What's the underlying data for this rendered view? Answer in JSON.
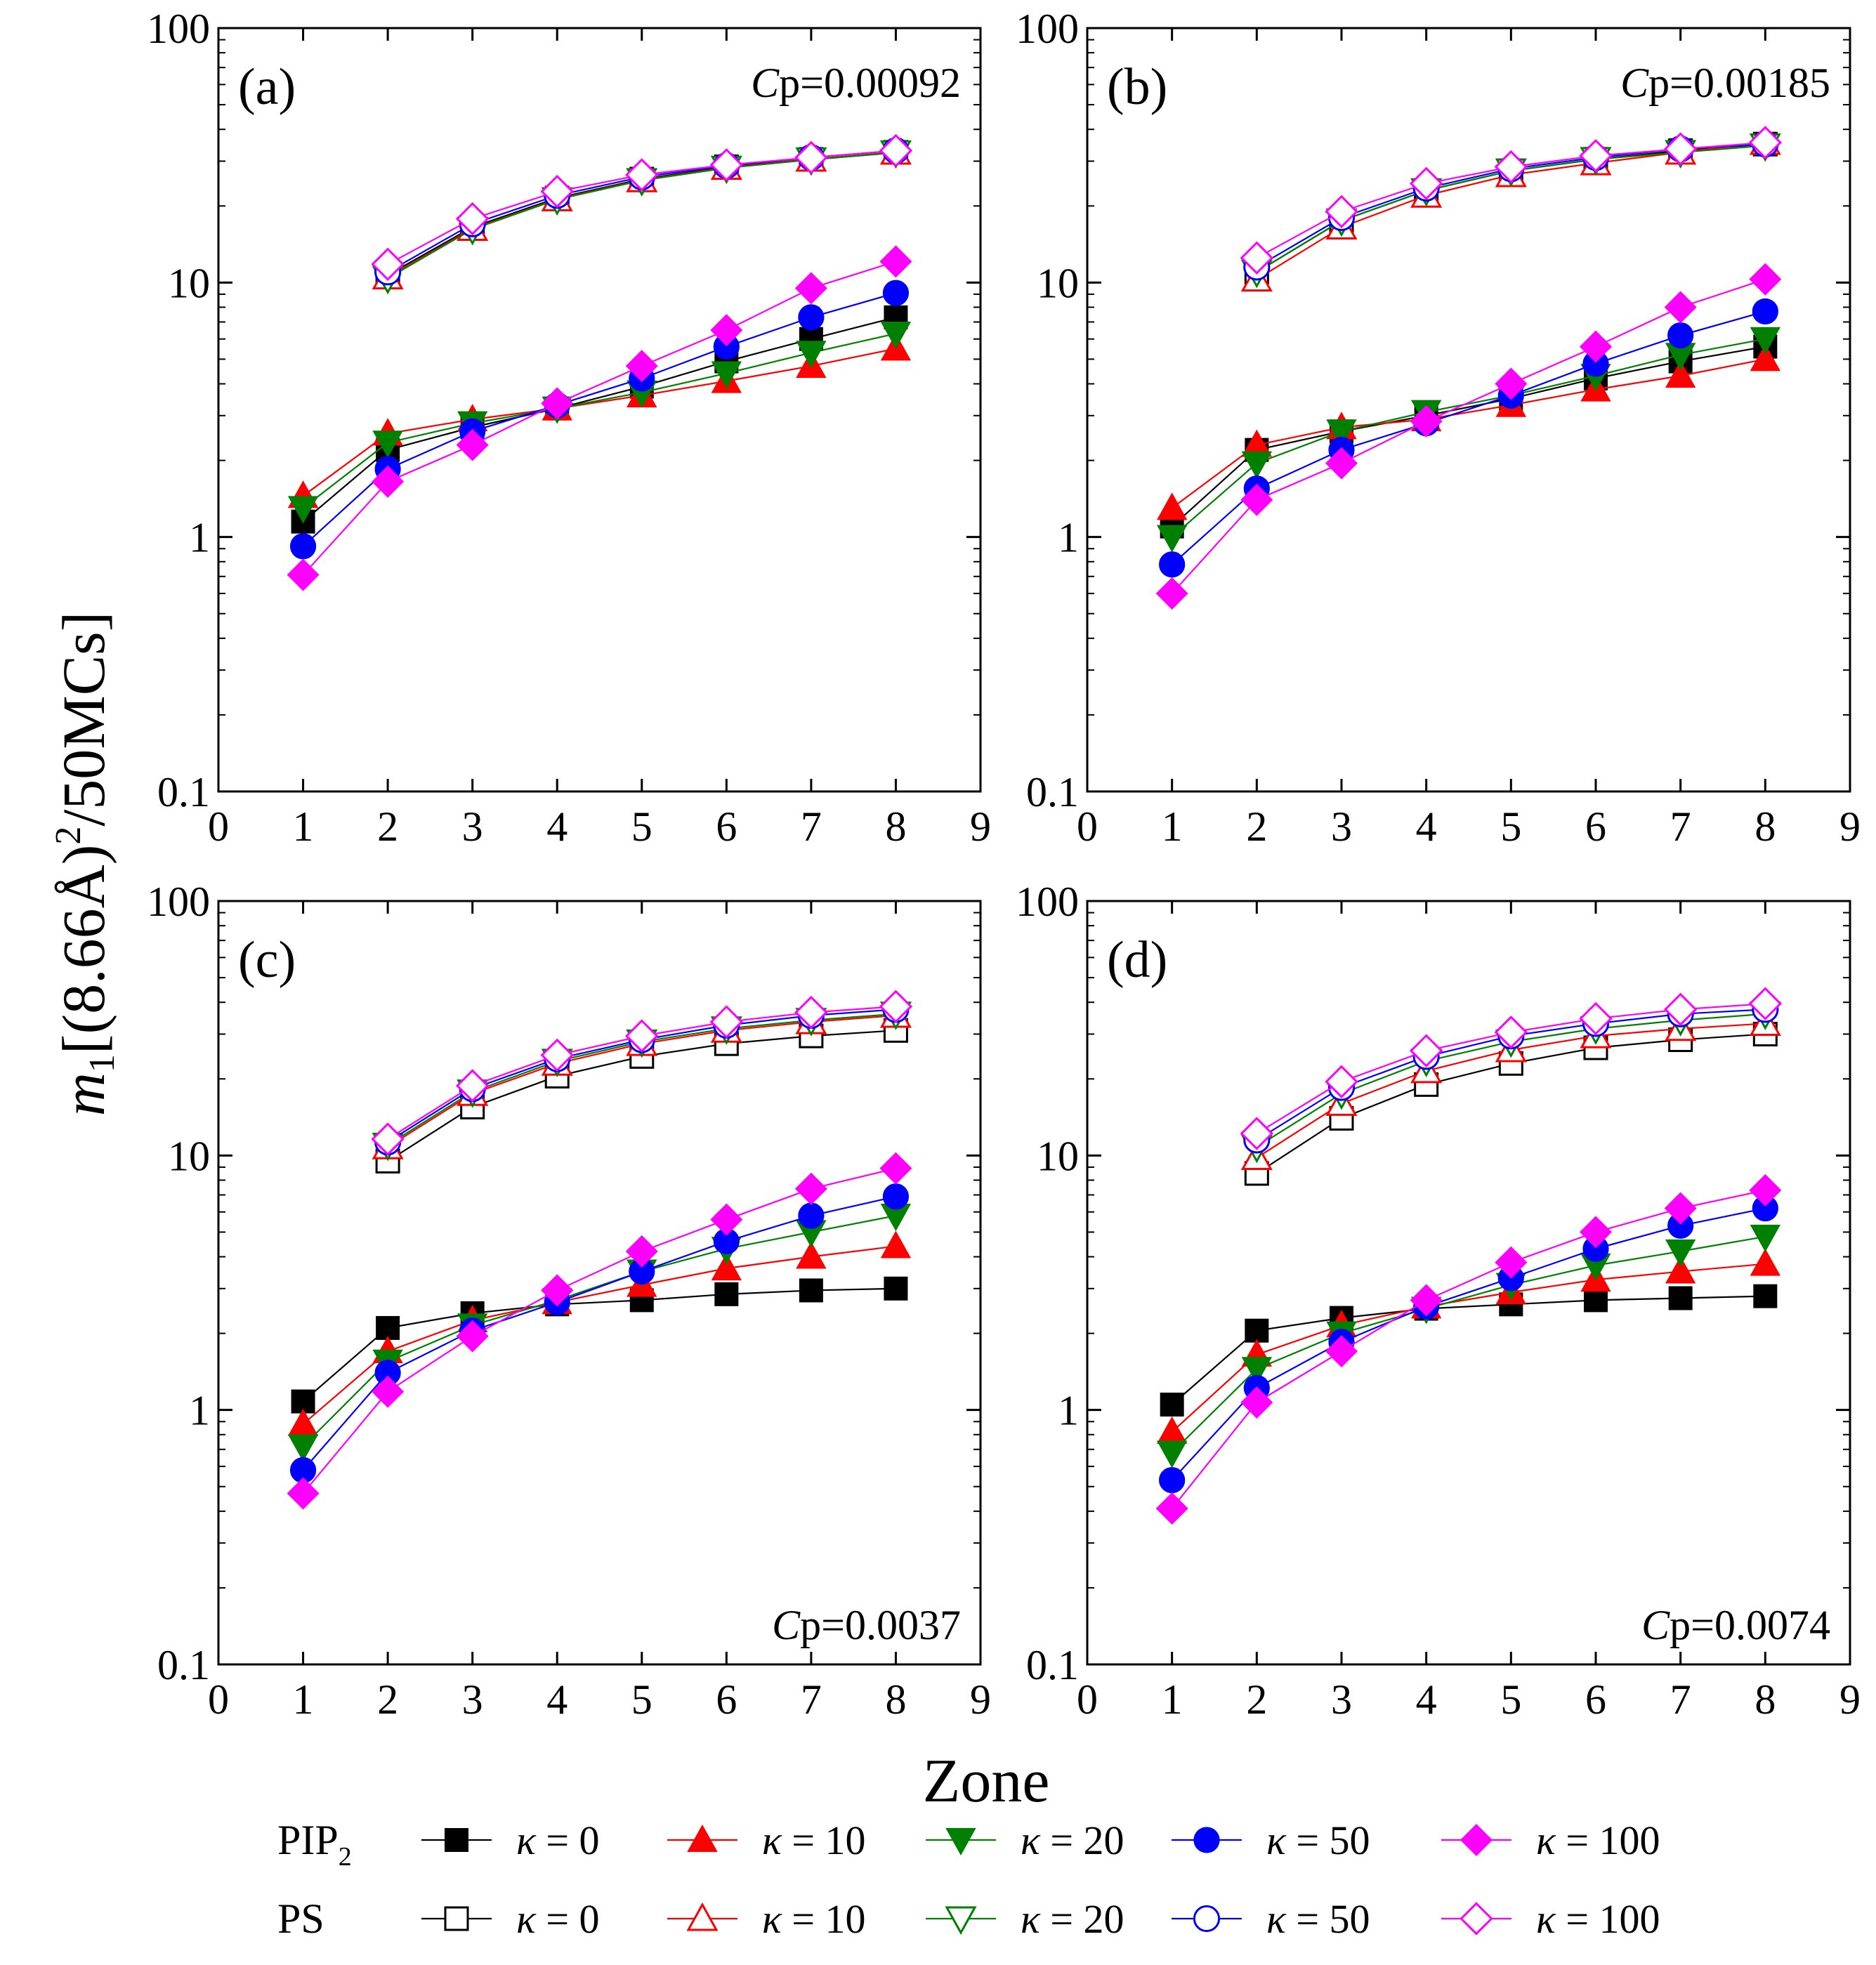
{
  "figure": {
    "y_axis_label_main": "m",
    "y_axis_label_sub": "1",
    "y_axis_label_rest": "[(8.66Å)",
    "y_axis_label_sup": "2",
    "y_axis_label_tail": "/50MCs]",
    "x_axis_label": "Zone"
  },
  "styles": {
    "series_colors": {
      "k0": "#000000",
      "k10": "#ff0000",
      "k20": "#008000",
      "k50": "#0000ff",
      "k100": "#ff00ff"
    },
    "marker_shapes": {
      "k0": "square",
      "k10": "triangle-up",
      "k20": "triangle-down",
      "k50": "circle",
      "k100": "diamond"
    }
  },
  "legend": {
    "pip2_label": "PIP",
    "pip2_sub": "2",
    "ps_label": "PS",
    "entries": [
      {
        "key": "k0",
        "kappa_symbol": "κ",
        "value_text": " = 0"
      },
      {
        "key": "k10",
        "kappa_symbol": "κ",
        "value_text": " = 10"
      },
      {
        "key": "k20",
        "kappa_symbol": "κ",
        "value_text": " = 20"
      },
      {
        "key": "k50",
        "kappa_symbol": "κ",
        "value_text": " = 50"
      },
      {
        "key": "k100",
        "kappa_symbol": "κ",
        "value_text": " = 100"
      }
    ]
  },
  "chart_data": [
    {
      "type": "line",
      "panel_label": "(a)",
      "cp_prefix": "C",
      "cp_suffix": "p=0.00092",
      "cp_position": "top-right",
      "xlim": [
        0,
        9
      ],
      "ylim": [
        0.1,
        100
      ],
      "yscale": "log",
      "xticks": [
        "0",
        "1",
        "2",
        "3",
        "4",
        "5",
        "6",
        "7",
        "8",
        "9"
      ],
      "yticks": [
        "0.1",
        "1",
        "10",
        "100"
      ],
      "series": [
        {
          "group": "PIP2",
          "key": "k0",
          "name": "PIP2 κ = 0",
          "x": [
            1,
            2,
            3,
            4,
            5,
            6,
            7,
            8
          ],
          "y": [
            1.15,
            2.2,
            2.7,
            3.2,
            3.9,
            4.9,
            6.0,
            7.3
          ]
        },
        {
          "group": "PIP2",
          "key": "k10",
          "name": "PIP2 κ = 10",
          "x": [
            1,
            2,
            3,
            4,
            5,
            6,
            7,
            8
          ],
          "y": [
            1.45,
            2.55,
            2.9,
            3.2,
            3.6,
            4.1,
            4.7,
            5.5
          ]
        },
        {
          "group": "PIP2",
          "key": "k20",
          "name": "PIP2 κ = 20",
          "x": [
            1,
            2,
            3,
            4,
            5,
            6,
            7,
            8
          ],
          "y": [
            1.3,
            2.35,
            2.8,
            3.2,
            3.7,
            4.4,
            5.3,
            6.3
          ]
        },
        {
          "group": "PIP2",
          "key": "k50",
          "name": "PIP2 κ = 50",
          "x": [
            1,
            2,
            3,
            4,
            5,
            6,
            7,
            8
          ],
          "y": [
            0.92,
            1.85,
            2.6,
            3.3,
            4.2,
            5.6,
            7.3,
            9.1
          ]
        },
        {
          "group": "PIP2",
          "key": "k100",
          "name": "PIP2 κ = 100",
          "x": [
            1,
            2,
            3,
            4,
            5,
            6,
            7,
            8
          ],
          "y": [
            0.71,
            1.65,
            2.3,
            3.35,
            4.7,
            6.5,
            9.5,
            12.1
          ]
        },
        {
          "group": "PS",
          "key": "k0",
          "name": "PS κ = 0",
          "x": [
            2,
            3,
            4,
            5,
            6,
            7,
            8
          ],
          "y": [
            10.7,
            16.5,
            21.5,
            25.5,
            28.5,
            30.5,
            32.5
          ]
        },
        {
          "group": "PS",
          "key": "k10",
          "name": "PS κ = 10",
          "x": [
            2,
            3,
            4,
            5,
            6,
            7,
            8
          ],
          "y": [
            10.5,
            16.3,
            21.3,
            25.3,
            28.3,
            30.5,
            32.5
          ]
        },
        {
          "group": "PS",
          "key": "k20",
          "name": "PS κ = 20",
          "x": [
            2,
            3,
            4,
            5,
            6,
            7,
            8
          ],
          "y": [
            10.4,
            16.2,
            21.2,
            25.2,
            28.2,
            30.4,
            32.4
          ]
        },
        {
          "group": "PS",
          "key": "k50",
          "name": "PS κ = 50",
          "x": [
            2,
            3,
            4,
            5,
            6,
            7,
            8
          ],
          "y": [
            11.0,
            17.0,
            22.0,
            26.0,
            28.8,
            31.0,
            33.0
          ]
        },
        {
          "group": "PS",
          "key": "k100",
          "name": "PS κ = 100",
          "x": [
            2,
            3,
            4,
            5,
            6,
            7,
            8
          ],
          "y": [
            11.8,
            17.8,
            22.8,
            26.5,
            29.0,
            31.0,
            33.0
          ]
        }
      ]
    },
    {
      "type": "line",
      "panel_label": "(b)",
      "cp_prefix": "C",
      "cp_suffix": "p=0.00185",
      "cp_position": "top-right",
      "xlim": [
        0,
        9
      ],
      "ylim": [
        0.1,
        100
      ],
      "yscale": "log",
      "xticks": [
        "0",
        "1",
        "2",
        "3",
        "4",
        "5",
        "6",
        "7",
        "8",
        "9"
      ],
      "yticks": [
        "0.1",
        "1",
        "10",
        "100"
      ],
      "series": [
        {
          "group": "PIP2",
          "key": "k0",
          "name": "PIP2 κ = 0",
          "x": [
            1,
            2,
            3,
            4,
            5,
            6,
            7,
            8
          ],
          "y": [
            1.1,
            2.2,
            2.6,
            3.0,
            3.5,
            4.2,
            4.9,
            5.6
          ]
        },
        {
          "group": "PIP2",
          "key": "k10",
          "name": "PIP2 κ = 10",
          "x": [
            1,
            2,
            3,
            4,
            5,
            6,
            7,
            8
          ],
          "y": [
            1.3,
            2.3,
            2.7,
            2.9,
            3.3,
            3.8,
            4.3,
            5.0
          ]
        },
        {
          "group": "PIP2",
          "key": "k20",
          "name": "PIP2 κ = 20",
          "x": [
            1,
            2,
            3,
            4,
            5,
            6,
            7,
            8
          ],
          "y": [
            1.0,
            1.95,
            2.6,
            3.1,
            3.6,
            4.3,
            5.2,
            6.0
          ]
        },
        {
          "group": "PIP2",
          "key": "k50",
          "name": "PIP2 κ = 50",
          "x": [
            1,
            2,
            3,
            4,
            5,
            6,
            7,
            8
          ],
          "y": [
            0.78,
            1.55,
            2.2,
            2.8,
            3.6,
            4.8,
            6.2,
            7.7
          ]
        },
        {
          "group": "PIP2",
          "key": "k100",
          "name": "PIP2 κ = 100",
          "x": [
            1,
            2,
            3,
            4,
            5,
            6,
            7,
            8
          ],
          "y": [
            0.6,
            1.4,
            1.95,
            2.85,
            4.0,
            5.6,
            8.0,
            10.3
          ]
        },
        {
          "group": "PS",
          "key": "k0",
          "name": "PS κ = 0",
          "x": [
            2,
            3,
            4,
            5,
            6,
            7,
            8
          ],
          "y": [
            11.0,
            17.5,
            23.0,
            27.5,
            30.5,
            33.0,
            35.0
          ]
        },
        {
          "group": "PS",
          "key": "k10",
          "name": "PS κ = 10",
          "x": [
            2,
            3,
            4,
            5,
            6,
            7,
            8
          ],
          "y": [
            10.3,
            16.5,
            22.0,
            26.5,
            29.5,
            32.5,
            35.5
          ]
        },
        {
          "group": "PS",
          "key": "k20",
          "name": "PS κ = 20",
          "x": [
            2,
            3,
            4,
            5,
            6,
            7,
            8
          ],
          "y": [
            11.0,
            17.5,
            23.0,
            27.5,
            30.5,
            32.5,
            34.5
          ]
        },
        {
          "group": "PS",
          "key": "k50",
          "name": "PS κ = 50",
          "x": [
            2,
            3,
            4,
            5,
            6,
            7,
            8
          ],
          "y": [
            11.5,
            18.0,
            23.5,
            28.0,
            31.0,
            33.5,
            35.0
          ]
        },
        {
          "group": "PS",
          "key": "k100",
          "name": "PS κ = 100",
          "x": [
            2,
            3,
            4,
            5,
            6,
            7,
            8
          ],
          "y": [
            12.5,
            19.0,
            24.5,
            28.5,
            31.5,
            33.5,
            35.5
          ]
        }
      ]
    },
    {
      "type": "line",
      "panel_label": "(c)",
      "cp_prefix": "C",
      "cp_suffix": "p=0.0037",
      "cp_position": "bottom-right",
      "xlim": [
        0,
        9
      ],
      "ylim": [
        0.1,
        100
      ],
      "yscale": "log",
      "xticks": [
        "0",
        "1",
        "2",
        "3",
        "4",
        "5",
        "6",
        "7",
        "8",
        "9"
      ],
      "yticks": [
        "0.1",
        "1",
        "10",
        "100"
      ],
      "series": [
        {
          "group": "PIP2",
          "key": "k0",
          "name": "PIP2 κ = 0",
          "x": [
            1,
            2,
            3,
            4,
            5,
            6,
            7,
            8
          ],
          "y": [
            1.08,
            2.1,
            2.4,
            2.6,
            2.7,
            2.85,
            2.95,
            3.0
          ]
        },
        {
          "group": "PIP2",
          "key": "k10",
          "name": "PIP2 κ = 10",
          "x": [
            1,
            2,
            3,
            4,
            5,
            6,
            7,
            8
          ],
          "y": [
            0.88,
            1.7,
            2.25,
            2.65,
            3.1,
            3.6,
            4.0,
            4.4
          ]
        },
        {
          "group": "PIP2",
          "key": "k20",
          "name": "PIP2 κ = 20",
          "x": [
            1,
            2,
            3,
            4,
            5,
            6,
            7,
            8
          ],
          "y": [
            0.72,
            1.55,
            2.15,
            2.7,
            3.5,
            4.3,
            5.0,
            5.8
          ]
        },
        {
          "group": "PIP2",
          "key": "k50",
          "name": "PIP2 κ = 50",
          "x": [
            1,
            2,
            3,
            4,
            5,
            6,
            7,
            8
          ],
          "y": [
            0.58,
            1.4,
            2.05,
            2.65,
            3.5,
            4.6,
            5.8,
            6.9
          ]
        },
        {
          "group": "PIP2",
          "key": "k100",
          "name": "PIP2 κ = 100",
          "x": [
            1,
            2,
            3,
            4,
            5,
            6,
            7,
            8
          ],
          "y": [
            0.47,
            1.18,
            1.95,
            2.95,
            4.2,
            5.6,
            7.4,
            8.9
          ]
        },
        {
          "group": "PS",
          "key": "k0",
          "name": "PS κ = 0",
          "x": [
            2,
            3,
            4,
            5,
            6,
            7,
            8
          ],
          "y": [
            9.5,
            15.5,
            20.5,
            24.5,
            27.5,
            29.5,
            31.0
          ]
        },
        {
          "group": "PS",
          "key": "k10",
          "name": "PS κ = 10",
          "x": [
            2,
            3,
            4,
            5,
            6,
            7,
            8
          ],
          "y": [
            10.8,
            17.5,
            23.0,
            27.5,
            31.0,
            33.5,
            35.5
          ]
        },
        {
          "group": "PS",
          "key": "k20",
          "name": "PS κ = 20",
          "x": [
            2,
            3,
            4,
            5,
            6,
            7,
            8
          ],
          "y": [
            11.0,
            17.8,
            23.5,
            28.0,
            31.5,
            34.0,
            36.0
          ]
        },
        {
          "group": "PS",
          "key": "k50",
          "name": "PS κ = 50",
          "x": [
            2,
            3,
            4,
            5,
            6,
            7,
            8
          ],
          "y": [
            11.3,
            18.3,
            24.0,
            28.5,
            32.5,
            35.5,
            37.5
          ]
        },
        {
          "group": "PS",
          "key": "k100",
          "name": "PS κ = 100",
          "x": [
            2,
            3,
            4,
            5,
            6,
            7,
            8
          ],
          "y": [
            11.6,
            18.8,
            24.8,
            29.5,
            33.5,
            36.5,
            38.5
          ]
        }
      ]
    },
    {
      "type": "line",
      "panel_label": "(d)",
      "cp_prefix": "C",
      "cp_suffix": "p=0.0074",
      "cp_position": "bottom-right",
      "xlim": [
        0,
        9
      ],
      "ylim": [
        0.1,
        100
      ],
      "yscale": "log",
      "xticks": [
        "0",
        "1",
        "2",
        "3",
        "4",
        "5",
        "6",
        "7",
        "8",
        "9"
      ],
      "yticks": [
        "0.1",
        "1",
        "10",
        "100"
      ],
      "series": [
        {
          "group": "PIP2",
          "key": "k0",
          "name": "PIP2 κ = 0",
          "x": [
            1,
            2,
            3,
            4,
            5,
            6,
            7,
            8
          ],
          "y": [
            1.05,
            2.05,
            2.3,
            2.5,
            2.6,
            2.7,
            2.75,
            2.8
          ]
        },
        {
          "group": "PIP2",
          "key": "k10",
          "name": "PIP2 κ = 10",
          "x": [
            1,
            2,
            3,
            4,
            5,
            6,
            7,
            8
          ],
          "y": [
            0.82,
            1.65,
            2.15,
            2.55,
            2.9,
            3.25,
            3.5,
            3.75
          ]
        },
        {
          "group": "PIP2",
          "key": "k20",
          "name": "PIP2 κ = 20",
          "x": [
            1,
            2,
            3,
            4,
            5,
            6,
            7,
            8
          ],
          "y": [
            0.68,
            1.45,
            2.0,
            2.5,
            3.1,
            3.7,
            4.2,
            4.8
          ]
        },
        {
          "group": "PIP2",
          "key": "k50",
          "name": "PIP2 κ = 50",
          "x": [
            1,
            2,
            3,
            4,
            5,
            6,
            7,
            8
          ],
          "y": [
            0.53,
            1.22,
            1.85,
            2.55,
            3.3,
            4.3,
            5.3,
            6.2
          ]
        },
        {
          "group": "PIP2",
          "key": "k100",
          "name": "PIP2 κ = 100",
          "x": [
            1,
            2,
            3,
            4,
            5,
            6,
            7,
            8
          ],
          "y": [
            0.41,
            1.07,
            1.7,
            2.7,
            3.8,
            5.0,
            6.2,
            7.3
          ]
        },
        {
          "group": "PS",
          "key": "k0",
          "name": "PS κ = 0",
          "x": [
            2,
            3,
            4,
            5,
            6,
            7,
            8
          ],
          "y": [
            8.5,
            14.0,
            19.0,
            23.0,
            26.5,
            28.5,
            30.0
          ]
        },
        {
          "group": "PS",
          "key": "k10",
          "name": "PS κ = 10",
          "x": [
            2,
            3,
            4,
            5,
            6,
            7,
            8
          ],
          "y": [
            9.8,
            16.0,
            21.5,
            26.0,
            29.5,
            31.5,
            33.0
          ]
        },
        {
          "group": "PS",
          "key": "k20",
          "name": "PS κ = 20",
          "x": [
            2,
            3,
            4,
            5,
            6,
            7,
            8
          ],
          "y": [
            10.8,
            17.5,
            23.5,
            28.0,
            31.5,
            34.0,
            36.0
          ]
        },
        {
          "group": "PS",
          "key": "k50",
          "name": "PS κ = 50",
          "x": [
            2,
            3,
            4,
            5,
            6,
            7,
            8
          ],
          "y": [
            11.5,
            18.5,
            24.5,
            29.5,
            33.0,
            36.0,
            37.5
          ]
        },
        {
          "group": "PS",
          "key": "k100",
          "name": "PS κ = 100",
          "x": [
            2,
            3,
            4,
            5,
            6,
            7,
            8
          ],
          "y": [
            12.2,
            19.5,
            25.8,
            30.5,
            34.5,
            37.5,
            39.5
          ]
        }
      ]
    }
  ]
}
